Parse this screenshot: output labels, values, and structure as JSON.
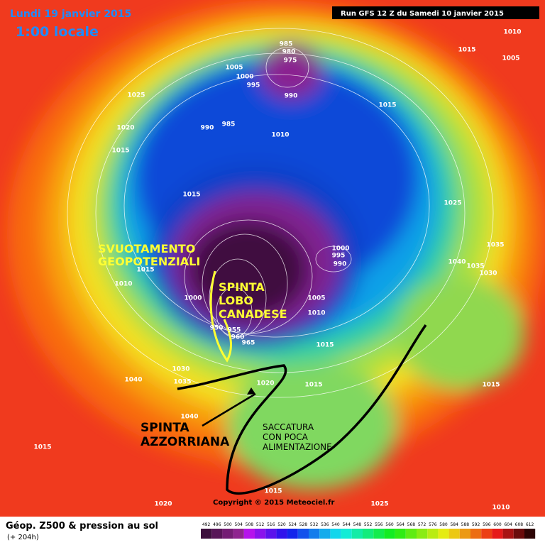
{
  "header": {
    "date": "Lundi 19 janvier 2015",
    "time": "1:00 locale",
    "run": "Run GFS 12 Z du Samedi 10 janvier 2015"
  },
  "isobars": [
    "1010",
    "1015",
    "1005",
    "985",
    "980",
    "975",
    "1005",
    "1000",
    "995",
    "990",
    "1025",
    "1015",
    "990",
    "985",
    "1010",
    "1020",
    "1015",
    "1015",
    "1025",
    "1000",
    "995",
    "990",
    "1035",
    "1040",
    "1035",
    "1030",
    "1015",
    "1010",
    "1005",
    "1010",
    "1015",
    "1040",
    "1030",
    "1035",
    "1020",
    "1015",
    "1015",
    "1040",
    "1015",
    "1020",
    "1015",
    "1025",
    "1010",
    "950",
    "955",
    "960",
    "965",
    "1000"
  ],
  "annotations": [
    [
      "SVUOTAMENTO",
      "GEOPOTENZIALI"
    ],
    [
      "SPINTA",
      "LOBO",
      "CANADESE"
    ],
    [
      "SPINTA",
      "AZZORRIANA"
    ],
    [
      "SACCATURA",
      "CON POCA",
      "ALIMENTAZIONE"
    ]
  ],
  "footer": {
    "title": "Géop. Z500 & pression au sol",
    "subtitle": "(+ 204h)",
    "copyright": "Copyright © 2015 Meteociel.fr",
    "scale": [
      492,
      496,
      500,
      504,
      508,
      512,
      516,
      520,
      524,
      528,
      532,
      536,
      540,
      544,
      548,
      552,
      556,
      560,
      564,
      568,
      572,
      576,
      580,
      584,
      588,
      592,
      596,
      600,
      604,
      608,
      612
    ]
  }
}
